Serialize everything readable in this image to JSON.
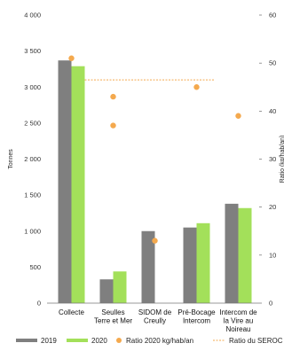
{
  "chart_data": {
    "type": "bar",
    "categories": [
      [
        "Collecte"
      ],
      [
        "Seulles",
        "Terre et Mer"
      ],
      [
        "SIDOM de",
        "Creully"
      ],
      [
        "Pré-Bocage",
        "Intercom"
      ],
      [
        "Intercom de",
        "la Vire au",
        "Noireau"
      ]
    ],
    "series": [
      {
        "name": "2019",
        "values": [
          3370,
          330,
          1000,
          1050,
          1380
        ],
        "color": "#7f7f7f"
      },
      {
        "name": "2020",
        "values": [
          3290,
          440,
          null,
          1110,
          1320
        ],
        "color": "#a3e05a"
      }
    ],
    "ratio_series": {
      "name": "Ratio 2020 kg/hab/an",
      "values": [
        51,
        43,
        13,
        45,
        39
      ],
      "color": "#f4a94e"
    },
    "ratio_extra_points": [
      {
        "category_index": 1,
        "value": 37
      }
    ],
    "reference_line": {
      "name": "Ratio du SEROC",
      "value": 46.5,
      "color": "#f4a94e"
    },
    "ylabel": "Tonnes",
    "y2label": "Ratio (kg/hab/an)",
    "ylim": [
      0,
      4000
    ],
    "yticks": [
      0,
      500,
      1000,
      1500,
      2000,
      2500,
      3000,
      3500,
      4000
    ],
    "ytick_labels": [
      "0",
      "500",
      "1 000",
      "1 500",
      "2 000",
      "2 500",
      "3 000",
      "3 500",
      "4 000"
    ],
    "y2lim": [
      0,
      60
    ],
    "y2ticks": [
      0,
      10,
      20,
      30,
      40,
      50,
      60
    ],
    "y2tick_labels": [
      "0",
      "10",
      "20",
      "30",
      "40",
      "50",
      "60"
    ],
    "legend_position": "bottom",
    "legend": [
      {
        "label": "2019",
        "kind": "bar",
        "color": "#7f7f7f"
      },
      {
        "label": "2020",
        "kind": "bar",
        "color": "#a3e05a"
      },
      {
        "label": "Ratio 2020 kg/hab/an",
        "kind": "dot",
        "color": "#f4a94e"
      },
      {
        "label": "Ratio du SEROC",
        "kind": "line",
        "color": "#f4a94e"
      }
    ]
  }
}
